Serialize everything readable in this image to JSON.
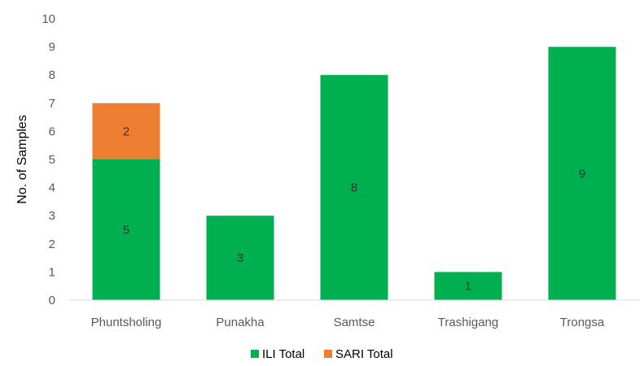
{
  "chart_data": {
    "type": "bar",
    "stacked": true,
    "title": "",
    "xlabel": "",
    "ylabel": "No. of Samples",
    "ylim": [
      0,
      10
    ],
    "yticks": [
      0,
      1,
      2,
      3,
      4,
      5,
      6,
      7,
      8,
      9,
      10
    ],
    "grid": false,
    "legend_position": "bottom",
    "categories": [
      "Phuntsholing",
      "Punakha",
      "Samtse",
      "Trashigang",
      "Trongsa"
    ],
    "series": [
      {
        "name": "ILI Total",
        "color": "#00b050",
        "values": [
          5,
          3,
          8,
          1,
          9
        ]
      },
      {
        "name": "SARI Total",
        "color": "#ed7d31",
        "values": [
          2,
          0,
          0,
          0,
          0
        ]
      }
    ]
  }
}
